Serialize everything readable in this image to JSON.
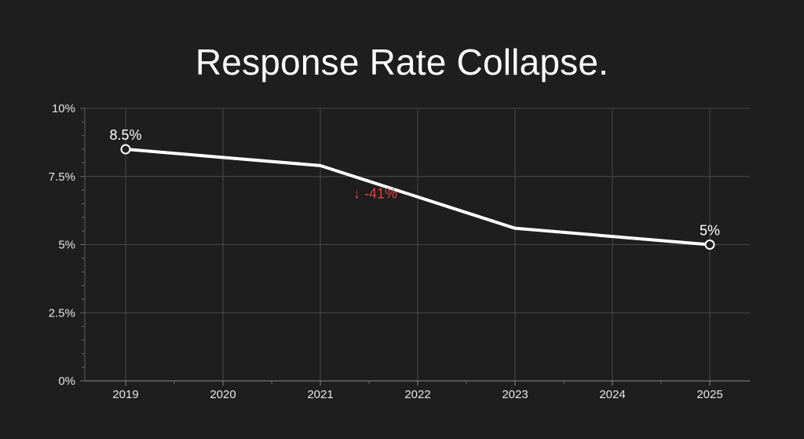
{
  "chart_data": {
    "type": "line",
    "title": "Response Rate Collapse.",
    "xlabel": "",
    "ylabel": "",
    "x": [
      "2019",
      "2020",
      "2021",
      "2022",
      "2023",
      "2024",
      "2025"
    ],
    "series": [
      {
        "name": "Response Rate",
        "values": [
          8.5,
          8.2,
          7.9,
          6.75,
          5.6,
          5.3,
          5.0
        ]
      }
    ],
    "ylim": [
      0,
      10
    ],
    "yticks": [
      0,
      2.5,
      5,
      7.5,
      10
    ],
    "ytick_labels": [
      "0%",
      "2.5%",
      "5%",
      "7.5%",
      "10%"
    ],
    "grid": true,
    "point_labels": [
      {
        "index": 0,
        "text": "8.5%"
      },
      {
        "index": 6,
        "text": "5%"
      }
    ],
    "annotations": [
      {
        "text": "↓ -41%",
        "x": 2.5,
        "y": 6.7
      }
    ],
    "colors": {
      "background": "#1e1e1e",
      "line": "#ffffff",
      "grid": "#4a4a4a",
      "annotation": "#e0453a"
    }
  }
}
